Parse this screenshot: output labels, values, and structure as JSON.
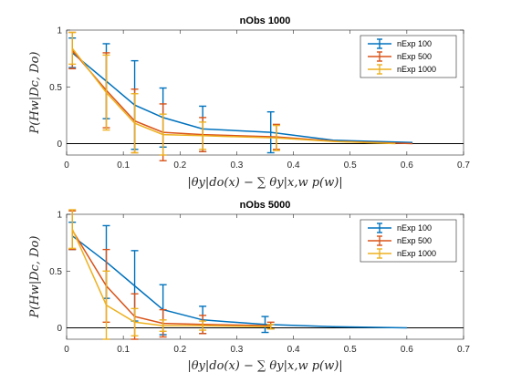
{
  "chart_data": [
    {
      "type": "line",
      "title": "nObs 1000",
      "xlabel": "|θy|do(x) − ∑ θy|x,w p(w)|",
      "ylabel": "P(Hw|Dc, Do)",
      "xlim": [
        0,
        0.7
      ],
      "ylim": [
        -0.1,
        1
      ],
      "xticks": [
        0,
        0.1,
        0.2,
        0.3,
        0.4,
        0.5,
        0.6,
        0.7
      ],
      "yticks": [
        0,
        0.5,
        1
      ],
      "xtick_labels": [
        "0",
        "0.1",
        "0.2",
        "0.3",
        "0.4",
        "0.5",
        "0.6",
        "0.7"
      ],
      "ytick_labels": [
        "0",
        "0.5",
        "1"
      ],
      "reference_line_y": 0,
      "legend_position": "top-right",
      "series": [
        {
          "name": "nExp 100",
          "color": "#0072BD",
          "x": [
            0.01,
            0.07,
            0.12,
            0.17,
            0.24,
            0.36,
            0.47,
            0.61
          ],
          "y": [
            0.8,
            0.55,
            0.34,
            0.23,
            0.13,
            0.1,
            0.03,
            0.01
          ],
          "err": [
            0.13,
            0.33,
            0.39,
            0.26,
            0.2,
            0.18,
            0,
            0
          ]
        },
        {
          "name": "nExp 500",
          "color": "#D95319",
          "x": [
            0.01,
            0.07,
            0.12,
            0.17,
            0.24,
            0.37,
            0.48,
            0.61
          ],
          "y": [
            0.82,
            0.47,
            0.2,
            0.1,
            0.08,
            0.06,
            0.02,
            0.0
          ],
          "err": [
            0.16,
            0.33,
            0.28,
            0.25,
            0.15,
            0.11,
            0,
            0
          ]
        },
        {
          "name": "nExp 1000",
          "color": "#EDB120",
          "x": [
            0.01,
            0.07,
            0.12,
            0.17,
            0.24,
            0.37,
            0.47,
            0.58
          ],
          "y": [
            0.84,
            0.45,
            0.18,
            0.08,
            0.07,
            0.05,
            0.02,
            0.0
          ],
          "err": [
            0.14,
            0.33,
            0.26,
            0.18,
            0.12,
            0.11,
            0,
            0
          ]
        }
      ]
    },
    {
      "type": "line",
      "title": "nObs 5000",
      "xlabel": "|θy|do(x) − ∑ θy|x,w p(w)|",
      "ylabel": "P(Hw|Dc, Do)",
      "xlim": [
        0,
        0.7
      ],
      "ylim": [
        -0.1,
        1
      ],
      "xticks": [
        0,
        0.1,
        0.2,
        0.3,
        0.4,
        0.5,
        0.6,
        0.7
      ],
      "yticks": [
        0,
        0.5,
        1
      ],
      "xtick_labels": [
        "0",
        "0.1",
        "0.2",
        "0.3",
        "0.4",
        "0.5",
        "0.6",
        "0.7"
      ],
      "ytick_labels": [
        "0",
        "0.5",
        "1"
      ],
      "reference_line_y": 0,
      "legend_position": "top-right",
      "series": [
        {
          "name": "nExp 100",
          "color": "#0072BD",
          "x": [
            0.01,
            0.07,
            0.12,
            0.17,
            0.24,
            0.35,
            0.47,
            0.6
          ],
          "y": [
            0.81,
            0.58,
            0.37,
            0.16,
            0.07,
            0.03,
            0.01,
            0.0
          ],
          "err": [
            0.12,
            0.32,
            0.31,
            0.22,
            0.12,
            0.07,
            0,
            0
          ]
        },
        {
          "name": "nExp 500",
          "color": "#D95319",
          "x": [
            0.01,
            0.07,
            0.12,
            0.17,
            0.24,
            0.36
          ],
          "y": [
            0.86,
            0.37,
            0.1,
            0.04,
            0.03,
            0.02
          ],
          "err": [
            0.17,
            0.32,
            0.2,
            0.12,
            0.08,
            0.03
          ]
        },
        {
          "name": "nExp 1000",
          "color": "#EDB120",
          "x": [
            0.01,
            0.07,
            0.12,
            0.17,
            0.24,
            0.36
          ],
          "y": [
            0.87,
            0.2,
            0.05,
            0.02,
            0.02,
            0.01
          ],
          "err": [
            0.17,
            0.3,
            0.12,
            0.05,
            0.04,
            0.02
          ]
        }
      ]
    }
  ]
}
